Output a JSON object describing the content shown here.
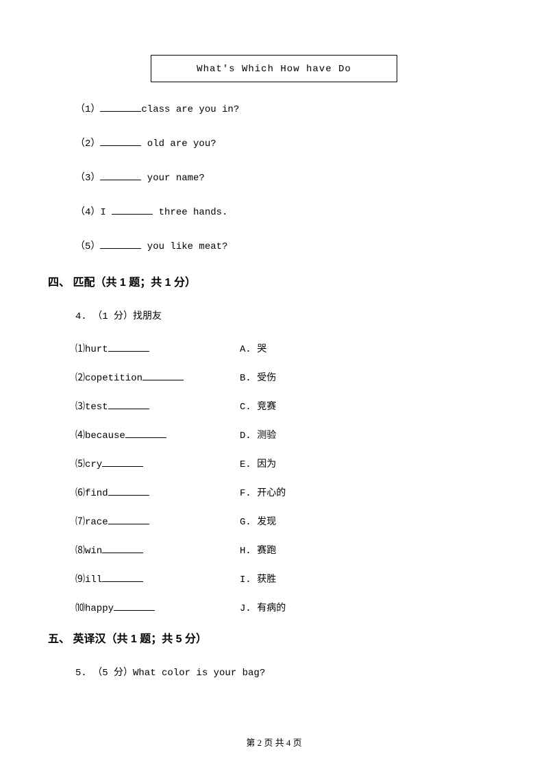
{
  "word_box": "What's  Which  How  have  Do",
  "fill_items": [
    {
      "num": "（1）",
      "text_after": "class are you in?"
    },
    {
      "num": "（2）",
      "text_after": " old are you?"
    },
    {
      "num": "（3）",
      "text_after": " your name?"
    },
    {
      "num": "（4）I ",
      "text_after": " three hands."
    },
    {
      "num": "（5）",
      "text_after": " you like meat?"
    }
  ],
  "section4": {
    "title": "四、 匹配（共 1 题；共 1 分）",
    "intro": "4. （1 分）找朋友",
    "matches": [
      {
        "left": "⑴hurt",
        "right": "A. 哭"
      },
      {
        "left": "⑵copetition",
        "right": "B. 受伤"
      },
      {
        "left": "⑶test",
        "right": "C. 竞赛"
      },
      {
        "left": "⑷because",
        "right": "D. 测验"
      },
      {
        "left": "⑸cry",
        "right": "E. 因为"
      },
      {
        "left": "⑹find",
        "right": "F. 开心的"
      },
      {
        "left": "⑺race",
        "right": "G. 发现"
      },
      {
        "left": "⑻win",
        "right": "H. 赛跑"
      },
      {
        "left": "⑼ill",
        "right": "  I. 获胜"
      },
      {
        "left": "⑽happy",
        "right": "J. 有病的"
      }
    ]
  },
  "section5": {
    "title": "五、 英译汉（共 1 题；共 5 分）",
    "question": "5. （5 分）What color is your bag?"
  },
  "footer": "第 2 页 共 4 页"
}
